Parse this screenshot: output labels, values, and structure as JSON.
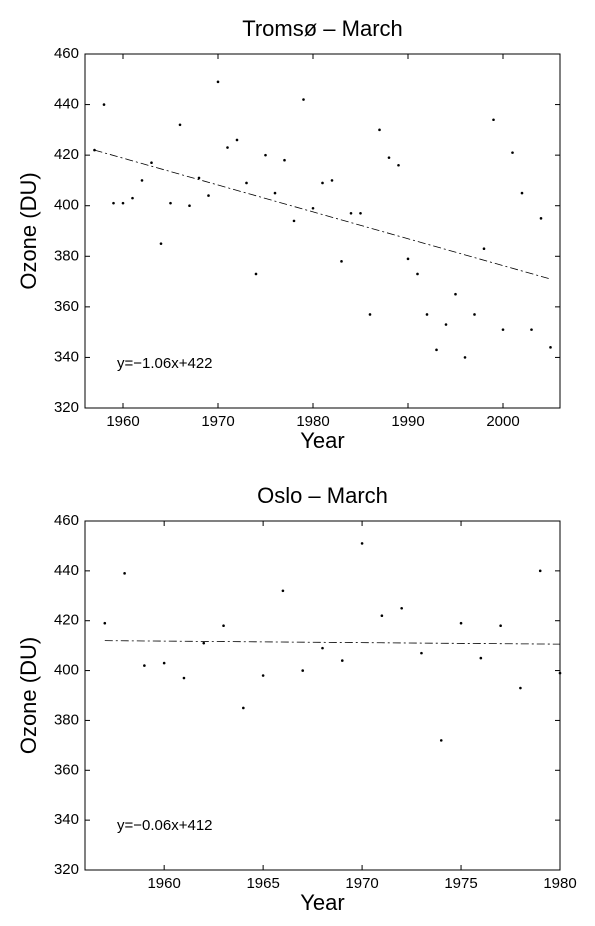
{
  "chart_data": [
    {
      "type": "scatter",
      "title": "Tromsø – March",
      "xlabel": "Year",
      "ylabel": "Ozone (DU)",
      "annotation": "y=−1.06x+422",
      "color": "#000000",
      "x": [
        1957,
        1958,
        1959,
        1960,
        1961,
        1962,
        1963,
        1964,
        1965,
        1966,
        1967,
        1968,
        1969,
        1970,
        1971,
        1972,
        1973,
        1974,
        1975,
        1976,
        1977,
        1978,
        1979,
        1980,
        1981,
        1982,
        1983,
        1984,
        1985,
        1986,
        1987,
        1988,
        1989,
        1990,
        1991,
        1992,
        1993,
        1994,
        1995,
        1996,
        1997,
        1998,
        1999,
        2000,
        2001,
        2002,
        2003,
        2004,
        2005
      ],
      "values": [
        422,
        440,
        401,
        401,
        403,
        410,
        417,
        385,
        401,
        432,
        400,
        411,
        404,
        449,
        423,
        426,
        409,
        373,
        420,
        405,
        418,
        394,
        442,
        399,
        409,
        410,
        378,
        397,
        397,
        357,
        430,
        419,
        416,
        379,
        373,
        357,
        343,
        353,
        365,
        340,
        357,
        383,
        434,
        351,
        421,
        405,
        351,
        395,
        344
      ],
      "trendline": {
        "x": [
          1957,
          2005
        ],
        "values": [
          422,
          371
        ]
      },
      "xlim": [
        1956,
        2006
      ],
      "xticks": [
        1960,
        1970,
        1980,
        1990,
        2000
      ],
      "ylim": [
        320,
        460
      ],
      "yticks": [
        320,
        340,
        360,
        380,
        400,
        420,
        440,
        460
      ]
    },
    {
      "type": "scatter",
      "title": "Oslo – March",
      "xlabel": "Year",
      "ylabel": "Ozone (DU)",
      "annotation": "y=−0.06x+412",
      "color": "#000000",
      "x": [
        1957,
        1958,
        1959,
        1960,
        1961,
        1962,
        1963,
        1964,
        1965,
        1966,
        1967,
        1968,
        1969,
        1970,
        1971,
        1972,
        1973,
        1974,
        1975,
        1976,
        1977,
        1978,
        1979,
        1980
      ],
      "values": [
        419,
        439,
        402,
        403,
        397,
        411,
        418,
        385,
        398,
        432,
        400,
        409,
        404,
        451,
        422,
        425,
        407,
        372,
        419,
        405,
        418,
        393,
        440,
        399
      ],
      "trendline": {
        "x": [
          1957,
          1980
        ],
        "values": [
          412,
          410.6
        ]
      },
      "xlim": [
        1956,
        1980
      ],
      "xticks": [
        1960,
        1965,
        1970,
        1975,
        1980
      ],
      "ylim": [
        320,
        460
      ],
      "yticks": [
        320,
        340,
        360,
        380,
        400,
        420,
        440,
        460
      ]
    }
  ]
}
